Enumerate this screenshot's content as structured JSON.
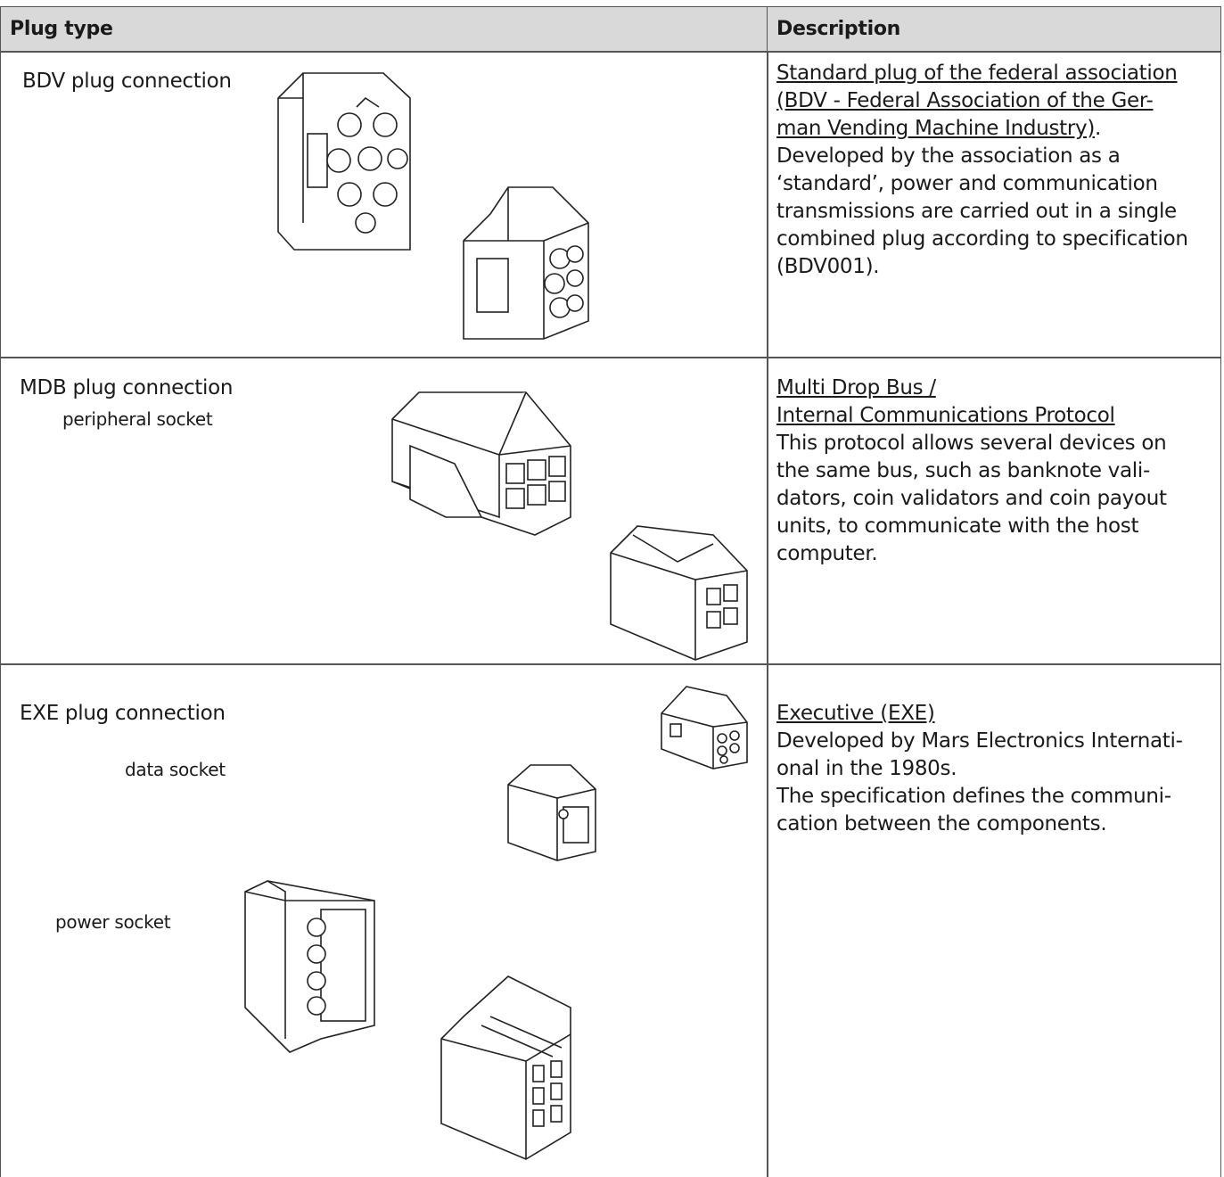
{
  "header": {
    "plug_type": "Plug type",
    "description": "Description"
  },
  "rows": [
    {
      "plug": "BDV plug connection",
      "sockets": [],
      "description": {
        "link": [
          "Standard plug of the federal association",
          "(BDV - Federal Association of the Ger-",
          "man Vending Machine Industry)"
        ],
        "link_end": ".",
        "body": [
          "Developed by the association as a",
          "‘standard’, power and communication",
          "transmissions are carried out in a single",
          "combined plug according to specification",
          "(BDV001)."
        ]
      }
    },
    {
      "plug": "MDB plug connection",
      "sockets": [
        "peripheral socket"
      ],
      "description": {
        "link": [
          "Multi Drop Bus /",
          "Internal Communications Protocol"
        ],
        "body": [
          "This protocol allows several devices on",
          "the same bus, such as banknote vali-",
          "dators, coin validators and coin payout",
          "units, to communicate with the host",
          "computer."
        ]
      }
    },
    {
      "plug": "EXE plug connection",
      "sockets": [
        "data socket",
        "power socket"
      ],
      "description": {
        "link": [
          "Executive (EXE)"
        ],
        "body": [
          "Developed by Mars Electronics Internati-",
          "onal in the 1980s.",
          "The specification defines the communi-",
          "cation between the components."
        ]
      }
    }
  ]
}
